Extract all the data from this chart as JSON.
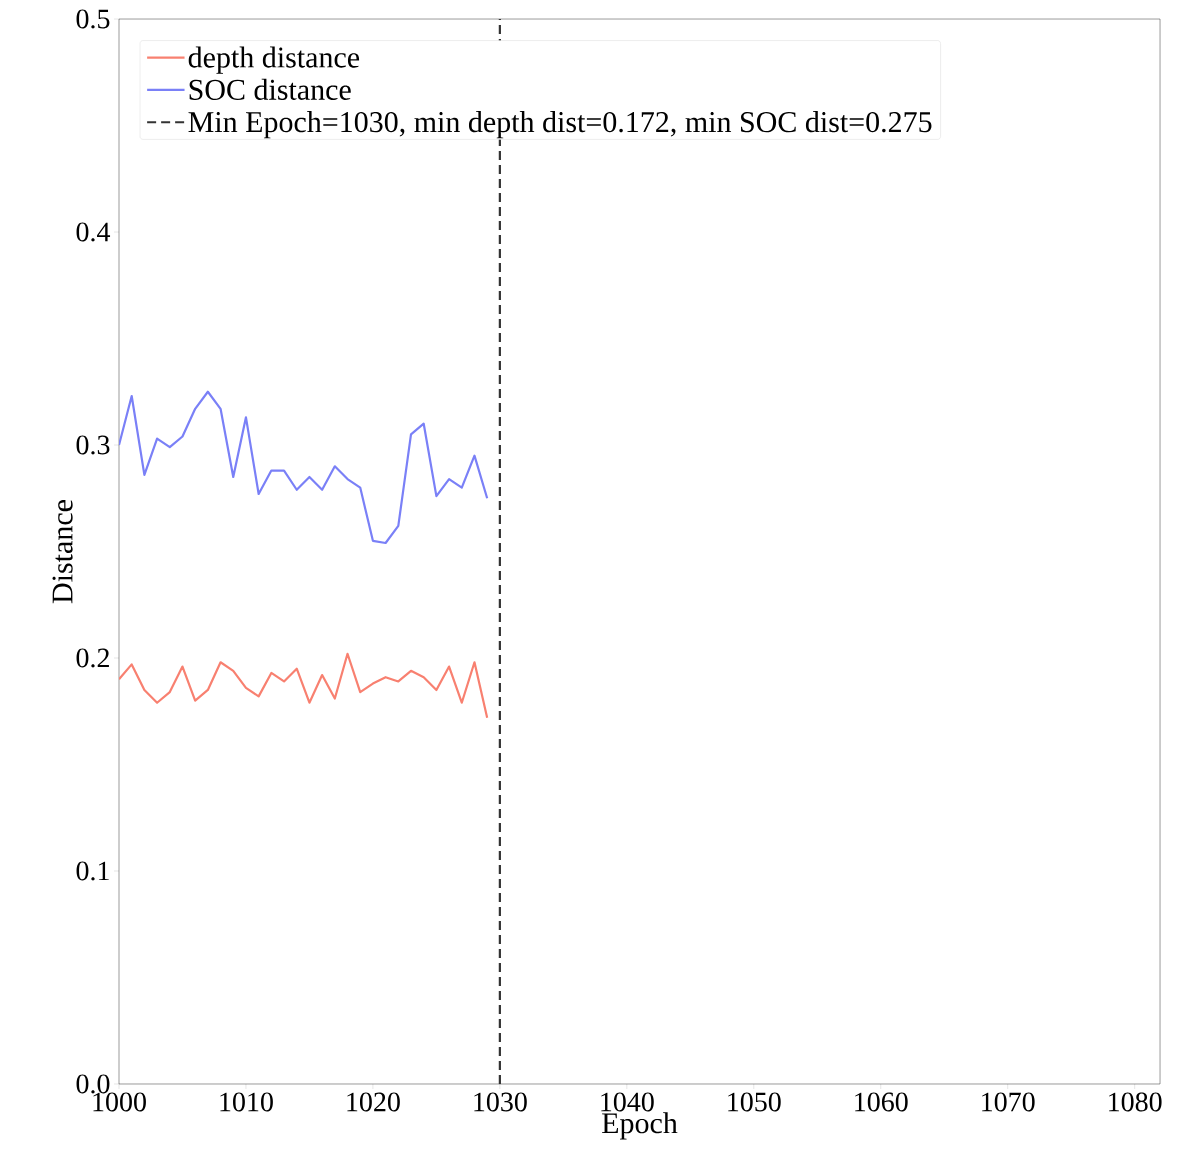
{
  "chart_data": {
    "type": "line",
    "xlabel": "Epoch",
    "ylabel": "Distance",
    "x": [
      1000,
      1001,
      1002,
      1003,
      1004,
      1005,
      1006,
      1007,
      1008,
      1009,
      1010,
      1011,
      1012,
      1013,
      1014,
      1015,
      1016,
      1017,
      1018,
      1019,
      1020,
      1021,
      1022,
      1023,
      1024,
      1025,
      1026,
      1027,
      1028,
      1029
    ],
    "series": [
      {
        "name": "depth distance",
        "color": "#f88070",
        "values": [
          0.19,
          0.197,
          0.185,
          0.179,
          0.184,
          0.196,
          0.18,
          0.185,
          0.198,
          0.194,
          0.186,
          0.182,
          0.193,
          0.189,
          0.195,
          0.179,
          0.192,
          0.181,
          0.202,
          0.184,
          0.188,
          0.191,
          0.189,
          0.194,
          0.191,
          0.185,
          0.196,
          0.179,
          0.198,
          0.172
        ]
      },
      {
        "name": "SOC distance",
        "color": "#7a80f7",
        "values": [
          0.3,
          0.323,
          0.286,
          0.303,
          0.299,
          0.304,
          0.317,
          0.325,
          0.317,
          0.285,
          0.313,
          0.277,
          0.288,
          0.288,
          0.279,
          0.285,
          0.279,
          0.29,
          0.284,
          0.28,
          0.255,
          0.254,
          0.262,
          0.305,
          0.31,
          0.276,
          0.284,
          0.28,
          0.295,
          0.275
        ]
      }
    ],
    "ref_lines": [
      {
        "axis": "x",
        "value": 1030,
        "label": "Min Epoch=1030, min depth dist=0.172, min SOC dist=0.275",
        "color": "#333333",
        "line_style": "dashed"
      }
    ],
    "xlim": [
      1000,
      1082
    ],
    "ylim": [
      0,
      0.5
    ],
    "xticks": [
      1000,
      1010,
      1020,
      1030,
      1040,
      1050,
      1060,
      1070,
      1080
    ],
    "yticks": [
      {
        "value": 0,
        "label": "0.0"
      },
      {
        "value": 0.1,
        "label": "0.1"
      },
      {
        "value": 0.2,
        "label": "0.2"
      },
      {
        "value": 0.3,
        "label": "0.3"
      },
      {
        "value": 0.4,
        "label": "0.4"
      },
      {
        "value": 0.5,
        "label": "0.5"
      }
    ],
    "legend": "top left",
    "grid": false,
    "marker": "none",
    "line_style": "solid"
  }
}
